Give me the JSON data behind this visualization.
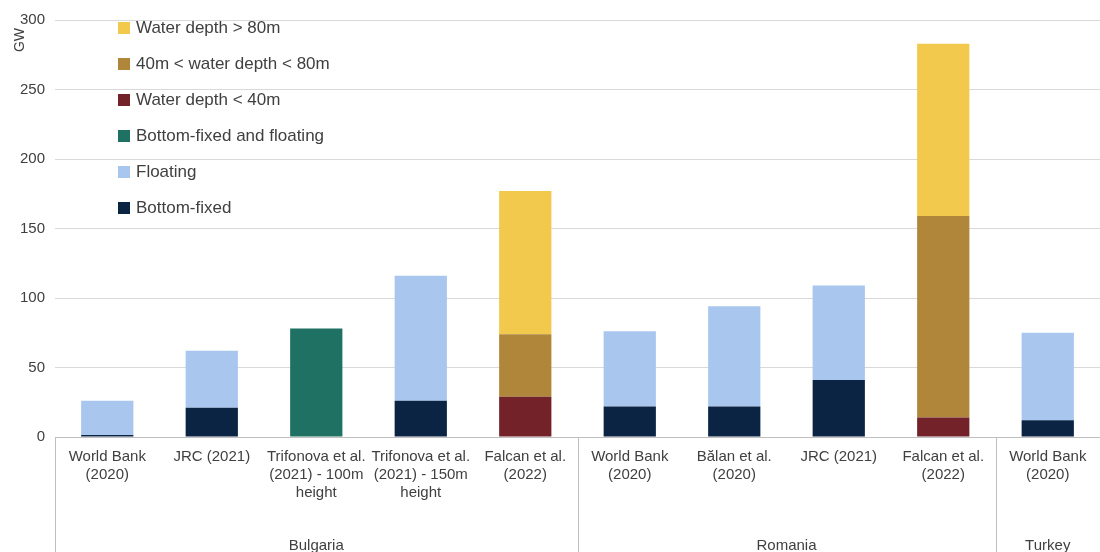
{
  "chart_data": {
    "type": "bar",
    "stacked": true,
    "ylabel": "GW",
    "ylim": [
      0,
      300
    ],
    "yticks": [
      0,
      50,
      100,
      150,
      200,
      250,
      300
    ],
    "grid": "y",
    "legend": "top left",
    "categories": [
      "World Bank (2020)",
      "JRC (2021)",
      "Trifonova et al. (2021) - 100m height",
      "Trifonova et al. (2021) - 150m height",
      "Falcan et al. (2022)",
      "World Bank (2020)",
      "Bălan et al. (2020)",
      "JRC (2021)",
      "Falcan et al. (2022)",
      "World Bank (2020)"
    ],
    "series": [
      {
        "name": "Bottom-fixed",
        "color": "#0b2444",
        "values": [
          1.5,
          21,
          null,
          26,
          null,
          22,
          22,
          41,
          null,
          12
        ]
      },
      {
        "name": "Floating",
        "color": "#a9c6ee",
        "values": [
          24.5,
          41,
          null,
          90,
          null,
          54,
          72,
          68,
          null,
          63
        ]
      },
      {
        "name": "Bottom-fixed and floating",
        "color": "#1f7263",
        "values": [
          null,
          null,
          78,
          null,
          null,
          null,
          null,
          null,
          null,
          null
        ]
      },
      {
        "name": "Water depth < 40m",
        "color": "#722228",
        "values": [
          null,
          null,
          null,
          null,
          29,
          null,
          null,
          null,
          14,
          null
        ]
      },
      {
        "name": "40m < water depth < 80m",
        "color": "#b0863a",
        "values": [
          null,
          null,
          null,
          null,
          45,
          null,
          null,
          null,
          145,
          null
        ]
      },
      {
        "name": "Water depth > 80m",
        "color": "#f2c94c",
        "values": [
          null,
          null,
          null,
          null,
          103,
          null,
          null,
          null,
          124,
          null
        ]
      }
    ],
    "annotations": [
      "Bulgaria",
      "Romania",
      "Turkey"
    ]
  }
}
